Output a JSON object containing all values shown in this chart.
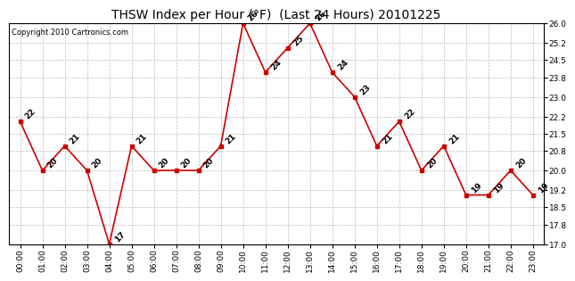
{
  "title": "THSW Index per Hour (°F)  (Last 24 Hours) 20101225",
  "copyright": "Copyright 2010 Cartronics.com",
  "hours": [
    "00:00",
    "01:00",
    "02:00",
    "03:00",
    "04:00",
    "05:00",
    "06:00",
    "07:00",
    "08:00",
    "09:00",
    "10:00",
    "11:00",
    "12:00",
    "13:00",
    "14:00",
    "15:00",
    "16:00",
    "17:00",
    "18:00",
    "19:00",
    "20:00",
    "21:00",
    "22:00",
    "23:00"
  ],
  "values": [
    22,
    20,
    21,
    20,
    17,
    21,
    20,
    20,
    20,
    21,
    26,
    24,
    25,
    26,
    24,
    23,
    21,
    22,
    20,
    21,
    19,
    19,
    20,
    19
  ],
  "ylim": [
    17.0,
    26.0
  ],
  "yticks": [
    17.0,
    17.8,
    18.5,
    19.2,
    20.0,
    20.8,
    21.5,
    22.2,
    23.0,
    23.8,
    24.5,
    25.2,
    26.0
  ],
  "line_color": "#cc0000",
  "marker_color": "#cc0000",
  "bg_color": "#ffffff",
  "grid_color": "#bbbbbb",
  "title_fontsize": 10,
  "copyright_fontsize": 6,
  "label_fontsize": 6.5,
  "annot_fontsize": 6.5,
  "tick_fontsize": 6.5
}
